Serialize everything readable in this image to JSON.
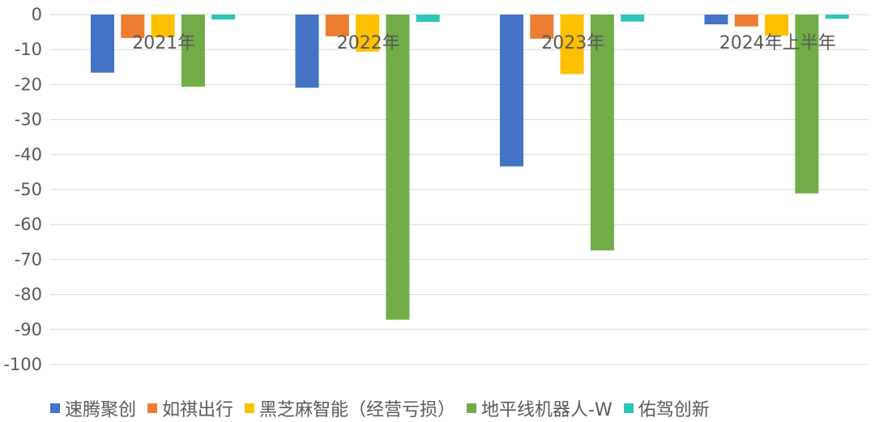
{
  "chart_data": {
    "type": "bar",
    "categories": [
      "2021年",
      "2022年",
      "2023年",
      "2024年上半年"
    ],
    "series": [
      {
        "name": "速腾聚创",
        "color": "#4472c4",
        "values": [
          -16.6,
          -20.9,
          -43.4,
          -2.8
        ]
      },
      {
        "name": "如祺出行",
        "color": "#ed7d31",
        "values": [
          -6.7,
          -6.2,
          -6.9,
          -3.4
        ]
      },
      {
        "name": "黑芝麻智能（经营亏损）",
        "color": "#ffc000",
        "values": [
          -6.5,
          -10.6,
          -17.0,
          -6.0
        ]
      },
      {
        "name": "地平线机器人-W",
        "color": "#70ad47",
        "values": [
          -20.6,
          -87.2,
          -67.4,
          -51.1
        ]
      },
      {
        "name": "佑驾创新",
        "color": "#2ec4b6",
        "values": [
          -1.4,
          -2.1,
          -2.0,
          -1.2
        ]
      }
    ],
    "y_ticks": [
      "0",
      "-10",
      "-20",
      "-30",
      "-40",
      "-50",
      "-60",
      "-70",
      "-80",
      "-90",
      "-100"
    ],
    "ylim": [
      -100,
      0
    ],
    "grid": true,
    "legend_position": "bottom"
  }
}
